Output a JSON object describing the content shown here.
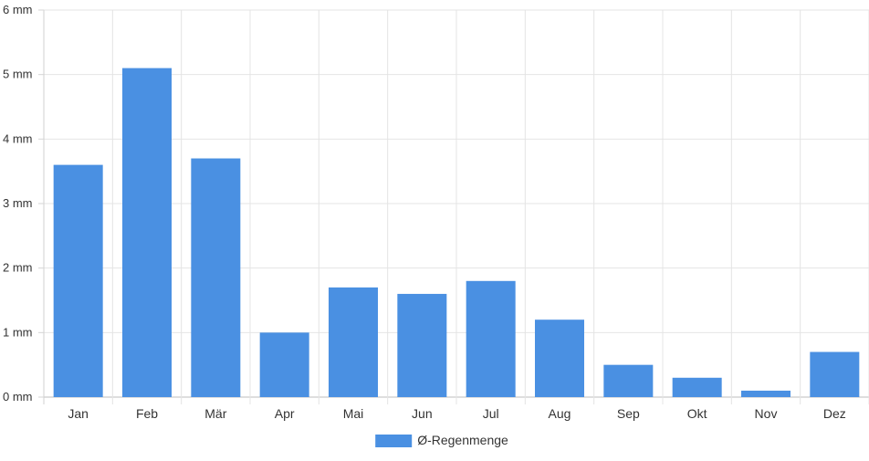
{
  "chart_data": {
    "type": "bar",
    "categories": [
      "Jan",
      "Feb",
      "Mär",
      "Apr",
      "Mai",
      "Jun",
      "Jul",
      "Aug",
      "Sep",
      "Okt",
      "Nov",
      "Dez"
    ],
    "series": [
      {
        "name": "Ø-Regenmenge",
        "values": [
          3.6,
          5.1,
          3.7,
          1.0,
          1.7,
          1.6,
          1.8,
          1.2,
          0.5,
          0.3,
          0.1,
          0.7
        ],
        "color": "#4a90e2"
      }
    ],
    "y_ticks": [
      0,
      1,
      2,
      3,
      4,
      5,
      6
    ],
    "y_unit": "mm",
    "ylim": [
      0,
      6
    ],
    "grid": true,
    "legend_position": "bottom",
    "title": "",
    "xlabel": "",
    "ylabel": ""
  }
}
